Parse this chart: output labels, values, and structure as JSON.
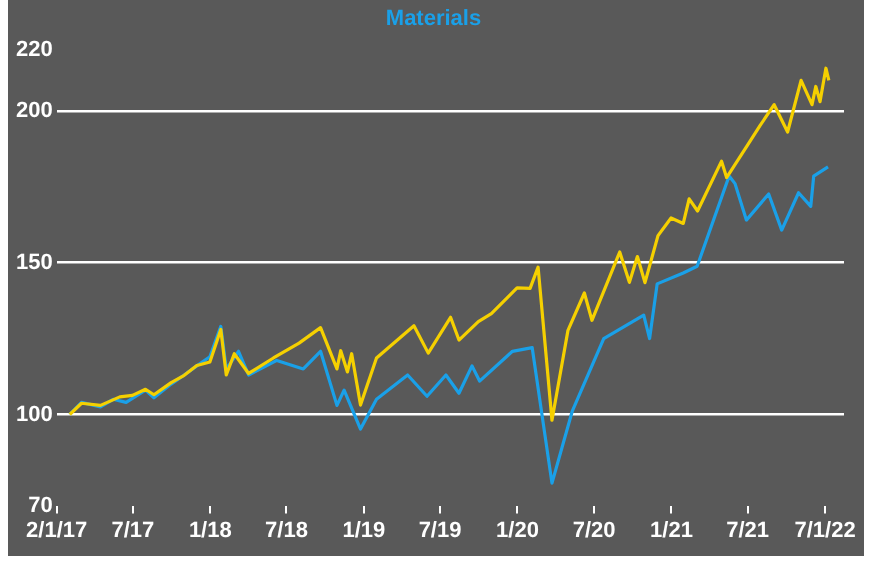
{
  "chart_data": {
    "type": "line",
    "legend": "top",
    "grid": "y",
    "marker": "none",
    "line_style": "solid",
    "xlim": [
      "2017-01-01",
      "2022-02-15"
    ],
    "xticks": [
      {
        "value": "2017-01-01",
        "label": "2/1/17"
      },
      {
        "value": "2017-07-01",
        "label": "7/17"
      },
      {
        "value": "2018-01-01",
        "label": "1/18"
      },
      {
        "value": "2018-07-01",
        "label": "7/18"
      },
      {
        "value": "2019-01-01",
        "label": "1/19"
      },
      {
        "value": "2019-07-01",
        "label": "7/19"
      },
      {
        "value": "2020-01-01",
        "label": "1/20"
      },
      {
        "value": "2020-07-01",
        "label": "7/20"
      },
      {
        "value": "2021-01-01",
        "label": "1/21"
      },
      {
        "value": "2021-07-01",
        "label": "7/21"
      },
      {
        "value": "2022-01-01",
        "label": "7/1/22"
      }
    ],
    "ylim": [
      70,
      220
    ],
    "yticks": [
      70,
      100,
      150,
      200,
      220
    ],
    "series": [
      {
        "color": "#f5d000",
        "x": [
          "2017-02-01",
          "2017-03-01",
          "2017-04-15",
          "2017-05-31",
          "2017-06-30",
          "2017-07-31",
          "2017-08-20",
          "2017-09-30",
          "2017-10-31",
          "2017-11-30",
          "2017-12-31",
          "2018-01-26",
          "2018-02-08",
          "2018-02-27",
          "2018-04-02",
          "2018-05-31",
          "2018-07-31",
          "2018-09-20",
          "2018-10-29",
          "2018-11-07",
          "2018-11-23",
          "2018-12-03",
          "2018-12-24",
          "2019-01-31",
          "2019-04-30",
          "2019-06-03",
          "2019-07-26",
          "2019-08-15",
          "2019-09-30",
          "2019-10-31",
          "2019-12-31",
          "2020-01-31",
          "2020-02-19",
          "2020-03-23",
          "2020-04-30",
          "2020-06-08",
          "2020-06-26",
          "2020-08-31",
          "2020-09-23",
          "2020-10-12",
          "2020-10-30",
          "2020-11-30",
          "2020-12-31",
          "2021-01-29",
          "2021-02-12",
          "2021-03-04",
          "2021-04-30",
          "2021-05-12",
          "2021-06-30",
          "2021-07-30",
          "2021-09-02",
          "2021-10-04",
          "2021-11-05",
          "2021-12-01",
          "2021-12-10",
          "2021-12-20",
          "2022-01-03",
          "2022-01-10"
        ],
        "values": [
          100,
          103.7,
          103,
          105.8,
          106.3,
          108.3,
          106.5,
          110.5,
          112.9,
          116.1,
          117.3,
          128,
          113,
          120,
          113.5,
          118.6,
          123.5,
          128.6,
          115,
          121,
          114,
          120,
          103.1,
          118.6,
          129.2,
          120.2,
          132,
          124.5,
          130.6,
          133.2,
          141.7,
          141.5,
          148.5,
          98.1,
          127.7,
          140,
          131,
          153.5,
          143.5,
          152,
          143.4,
          158.9,
          164.7,
          162.9,
          171,
          167,
          183.4,
          178,
          188.5,
          195,
          202,
          193,
          210,
          202,
          208,
          203,
          214,
          210
        ]
      },
      {
        "name": "Materials",
        "color": "#1aa0e8",
        "x": [
          "2017-02-01",
          "2017-03-01",
          "2017-04-15",
          "2017-05-15",
          "2017-06-15",
          "2017-07-31",
          "2017-08-20",
          "2017-09-30",
          "2017-10-31",
          "2017-11-30",
          "2017-12-31",
          "2018-01-26",
          "2018-02-08",
          "2018-03-09",
          "2018-04-02",
          "2018-06-08",
          "2018-08-10",
          "2018-09-20",
          "2018-10-29",
          "2018-11-15",
          "2018-12-24",
          "2019-01-31",
          "2019-04-15",
          "2019-05-31",
          "2019-07-15",
          "2019-08-15",
          "2019-09-15",
          "2019-10-03",
          "2019-12-20",
          "2020-02-05",
          "2020-03-23",
          "2020-05-10",
          "2020-07-24",
          "2020-10-27",
          "2020-11-10",
          "2020-11-28",
          "2021-01-29",
          "2021-03-03",
          "2021-05-18",
          "2021-06-01",
          "2021-06-28",
          "2021-08-20",
          "2021-09-20",
          "2021-10-30",
          "2021-11-28",
          "2021-12-05",
          "2022-01-08"
        ],
        "values": [
          100,
          104,
          102.5,
          105,
          104,
          108,
          105.5,
          110,
          113,
          116,
          119,
          129,
          114.9,
          120.8,
          113,
          117.8,
          115,
          120.8,
          103,
          108,
          95.2,
          105,
          113,
          106,
          113,
          107,
          116,
          111,
          120.8,
          122,
          77.4,
          101,
          125,
          132.7,
          125,
          143,
          146.6,
          148.8,
          178.5,
          176,
          164,
          172.6,
          160.7,
          173,
          168.5,
          178.5,
          181.5
        ]
      }
    ]
  }
}
